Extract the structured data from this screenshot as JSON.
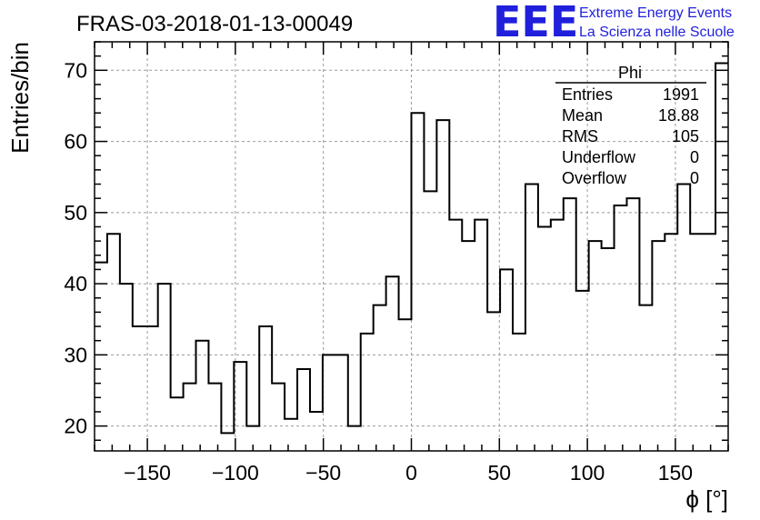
{
  "header": {
    "title": "FRAS-03-2018-01-13-00049",
    "logo_text": "EEE",
    "logo_line1": "Extreme Energy Events",
    "logo_line2": "La Scienza nelle Scuole",
    "logo_color": "#1f1fdc"
  },
  "stats": {
    "name": "Phi",
    "rows": [
      {
        "label": "Entries",
        "value": "1991"
      },
      {
        "label": "Mean",
        "value": "18.88"
      },
      {
        "label": "RMS",
        "value": "105"
      },
      {
        "label": "Underflow",
        "value": "0"
      },
      {
        "label": "Overflow",
        "value": "0"
      }
    ]
  },
  "chart_data": {
    "type": "bar",
    "style": "step-histogram",
    "title": "FRAS-03-2018-01-13-00049",
    "xlabel": "ϕ [°]",
    "ylabel": "Entries/bin",
    "xlim": [
      -180,
      180
    ],
    "ylim": [
      16.5,
      74
    ],
    "bin_width": 7.2,
    "x_ticks": [
      -150,
      -100,
      -50,
      0,
      50,
      100,
      150
    ],
    "x_tick_labels": [
      "−150",
      "−100",
      "−50",
      "0",
      "50",
      "100",
      "150"
    ],
    "y_ticks": [
      20,
      30,
      40,
      50,
      60,
      70
    ],
    "y_tick_labels": [
      "20",
      "30",
      "40",
      "50",
      "60",
      "70"
    ],
    "grid": true,
    "line_color": "#000000",
    "values": [
      43,
      47,
      40,
      34,
      34,
      40,
      24,
      26,
      32,
      26,
      19,
      29,
      20,
      34,
      26,
      21,
      28,
      22,
      30,
      30,
      20,
      33,
      37,
      41,
      35,
      64,
      53,
      63,
      49,
      46,
      49,
      36,
      42,
      33,
      54,
      48,
      49,
      52,
      39,
      46,
      45,
      51,
      52,
      37,
      46,
      47,
      54,
      47,
      47,
      71
    ]
  }
}
